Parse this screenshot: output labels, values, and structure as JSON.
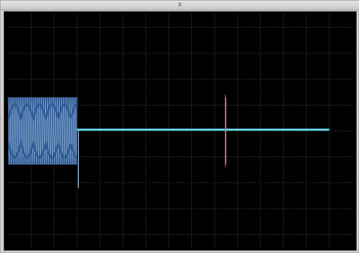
{
  "window": {
    "title": "Ir"
  },
  "colors": {
    "background": "#000000",
    "grid": "#5a5a5a",
    "burst_fill": "#2f5c9f",
    "burst_lines": "#b4d6f0",
    "steady": "#69d9ea",
    "transient": "#c23d3d"
  },
  "chart_data": {
    "type": "line",
    "title": "",
    "xlabel": "",
    "ylabel": "",
    "xlim": [
      0,
      15
    ],
    "ylim": [
      -4.5,
      4.5
    ],
    "grid": true,
    "x_gridlines": [
      1,
      2,
      3,
      4,
      5,
      6,
      7,
      8,
      9,
      10,
      11,
      12,
      13,
      14
    ],
    "y_gridlines": [
      -4,
      -3,
      -2,
      -1,
      0,
      1,
      2,
      3,
      4
    ],
    "series": [
      {
        "points": [
          [
            0,
            0.0
          ],
          [
            0.3,
            1.3
          ],
          [
            0.6,
            -1.3
          ],
          [
            0.9,
            1.25
          ],
          [
            1.2,
            -1.2
          ],
          [
            1.5,
            1.3
          ],
          [
            1.8,
            -1.3
          ],
          [
            2.1,
            1.25
          ],
          [
            2.4,
            -1.2
          ],
          [
            2.7,
            1.3
          ],
          [
            3.0,
            -1.3
          ],
          [
            3.08,
            0.05
          ],
          [
            3.09,
            -2.2
          ],
          [
            3.1,
            0.05
          ],
          [
            5,
            0.05
          ],
          [
            8,
            0.05
          ],
          [
            9.45,
            0.05
          ],
          [
            9.46,
            1.4
          ],
          [
            9.47,
            -1.4
          ],
          [
            9.48,
            0.05
          ],
          [
            14,
            0.05
          ]
        ]
      }
    ],
    "burst_region": {
      "x_start": 0,
      "x_end": 3.0,
      "amplitude": 1.3
    },
    "steady_level": 0.05,
    "end_time": 14,
    "transient_spike": {
      "x": 9.47,
      "peak": 1.4,
      "trough": -1.4
    }
  }
}
